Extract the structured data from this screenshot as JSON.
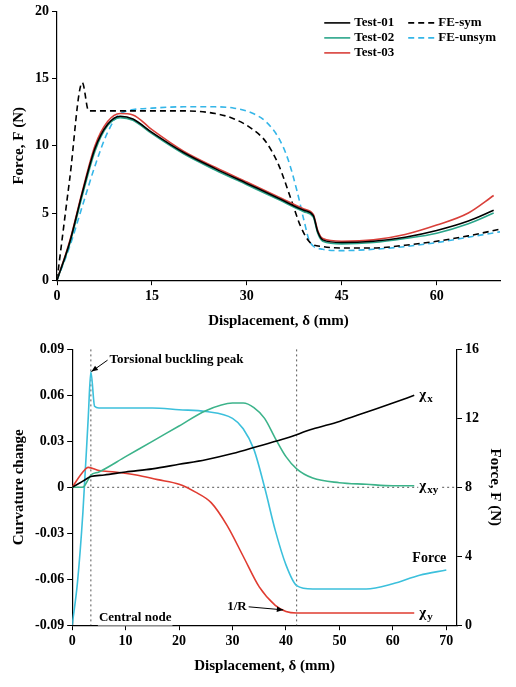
{
  "chart_data": [
    {
      "type": "line",
      "x_label": "Displacement, δ (mm)",
      "y_label": "Force, F (N)",
      "xlim": [
        0,
        70
      ],
      "xticks": [
        0,
        15,
        30,
        45,
        60
      ],
      "ylim": [
        0,
        20
      ],
      "yticks": [
        0,
        5,
        10,
        15,
        20
      ],
      "grid": false,
      "legend": "upper right",
      "series": [
        {
          "name": "Test-01",
          "color": "#000000",
          "line_style": "solid",
          "x": [
            0,
            2,
            4,
            6,
            8,
            10,
            12,
            15,
            20,
            25,
            30,
            35,
            39,
            40.5,
            41.2,
            42,
            45,
            50,
            55,
            60,
            65,
            69
          ],
          "values": [
            0,
            2.8,
            6.5,
            9.8,
            11.6,
            12.2,
            12.0,
            11.0,
            9.5,
            8.3,
            7.2,
            6.1,
            5.2,
            4.8,
            3.6,
            3.0,
            2.8,
            2.9,
            3.2,
            3.7,
            4.4,
            5.2
          ]
        },
        {
          "name": "Test-02",
          "color": "#2aa58a",
          "line_style": "solid",
          "x": [
            0,
            2,
            4,
            6,
            8,
            10,
            12,
            15,
            20,
            25,
            30,
            35,
            39,
            40.5,
            41.2,
            42,
            45,
            50,
            55,
            60,
            65,
            69
          ],
          "values": [
            0,
            2.7,
            6.3,
            9.6,
            11.5,
            12.1,
            11.9,
            10.9,
            9.4,
            8.2,
            7.1,
            6.0,
            5.1,
            4.7,
            3.5,
            2.9,
            2.7,
            2.8,
            3.1,
            3.5,
            4.2,
            5.0
          ]
        },
        {
          "name": "Test-03",
          "color": "#d9403a",
          "line_style": "solid",
          "x": [
            0,
            2,
            4,
            6,
            8,
            10,
            12,
            15,
            20,
            25,
            30,
            35,
            39,
            40.5,
            41.2,
            42,
            45,
            50,
            55,
            60,
            65,
            69
          ],
          "values": [
            0,
            2.9,
            6.6,
            10.0,
            11.8,
            12.4,
            12.3,
            11.2,
            9.6,
            8.4,
            7.3,
            6.2,
            5.3,
            4.9,
            3.7,
            3.1,
            2.9,
            3.0,
            3.4,
            4.1,
            5.0,
            6.3
          ]
        },
        {
          "name": "FE-sym",
          "color": "#000000",
          "line_style": "dashed",
          "x": [
            0,
            2,
            4,
            5,
            8,
            15,
            20,
            25,
            28,
            31,
            33,
            35,
            37,
            38.5,
            40,
            42,
            45,
            50,
            55,
            60,
            65,
            70
          ],
          "values": [
            0,
            7.5,
            14.7,
            12.6,
            12.6,
            12.6,
            12.6,
            12.4,
            12.0,
            11.2,
            10.3,
            8.6,
            6.0,
            4.0,
            2.8,
            2.5,
            2.4,
            2.4,
            2.6,
            2.9,
            3.3,
            3.8
          ]
        },
        {
          "name": "FE-unsym",
          "color": "#35b6e8",
          "line_style": "dashed",
          "x": [
            0,
            2,
            4,
            6,
            8,
            10,
            15,
            20,
            25,
            28,
            31,
            33,
            35,
            36.5,
            38,
            39,
            40,
            42,
            45,
            50,
            55,
            60,
            65,
            70
          ],
          "values": [
            0,
            2.5,
            5.5,
            8.5,
            11.0,
            12.4,
            12.8,
            12.9,
            12.9,
            12.8,
            12.4,
            11.8,
            10.6,
            9.0,
            6.5,
            4.5,
            2.8,
            2.3,
            2.2,
            2.3,
            2.5,
            2.8,
            3.2,
            3.6
          ]
        }
      ]
    },
    {
      "type": "line",
      "x_label": "Displacement, δ (mm)",
      "y_label": "Curvature change",
      "y2_label": "Force, F (N)",
      "xlim": [
        0,
        72
      ],
      "xticks": [
        0,
        10,
        20,
        30,
        40,
        50,
        60,
        70
      ],
      "ylim": [
        -0.09,
        0.09
      ],
      "yticks": [
        -0.09,
        -0.06,
        -0.03,
        0,
        0.03,
        0.06,
        0.09
      ],
      "y2lim": [
        0,
        16
      ],
      "y2ticks": [
        0,
        4,
        8,
        12,
        16
      ],
      "grid": false,
      "reference_lines": {
        "x": [
          3.5,
          42
        ],
        "y": [
          0
        ]
      },
      "annotations": [
        {
          "text": "Torsional buckling peak",
          "x": 7,
          "y": 0.083,
          "arrow_to": [
            3.6,
            0.0755
          ]
        },
        {
          "text": "1/R",
          "x": 29,
          "y": -0.078,
          "arrow_to": [
            39.5,
            -0.08
          ]
        },
        {
          "text": "Central node",
          "x": 5,
          "y": -0.085
        }
      ],
      "series": [
        {
          "name": "χx",
          "color": "#000000",
          "line_style": "solid",
          "x": [
            0,
            2,
            3.5,
            6,
            10,
            15,
            20,
            25,
            30,
            35,
            40,
            45,
            50,
            55,
            60,
            64
          ],
          "values": [
            0,
            0.004,
            0.007,
            0.008,
            0.01,
            0.012,
            0.015,
            0.018,
            0.022,
            0.027,
            0.032,
            0.038,
            0.043,
            0.049,
            0.055,
            0.06
          ]
        },
        {
          "name": "χxy",
          "color": "#3cb38a",
          "line_style": "solid",
          "x": [
            0,
            2,
            3,
            3.5,
            5,
            10,
            15,
            20,
            25,
            30,
            32,
            34,
            36,
            38,
            40,
            42,
            45,
            50,
            55,
            60,
            64
          ],
          "values": [
            0,
            0,
            0.005,
            0.008,
            0.01,
            0.02,
            0.03,
            0.04,
            0.05,
            0.055,
            0.055,
            0.052,
            0.045,
            0.032,
            0.02,
            0.012,
            0.006,
            0.003,
            0.002,
            0.001,
            0.001
          ]
        },
        {
          "name": "χy",
          "color": "#e03c31",
          "line_style": "solid",
          "x": [
            0,
            2,
            3,
            5,
            8,
            12,
            16,
            20,
            23,
            26,
            29,
            32,
            35,
            38,
            40,
            42,
            45,
            50,
            55,
            60,
            64
          ],
          "values": [
            0,
            0.01,
            0.013,
            0.011,
            0.01,
            0.008,
            0.005,
            0.002,
            -0.003,
            -0.01,
            -0.025,
            -0.045,
            -0.065,
            -0.077,
            -0.081,
            -0.082,
            -0.082,
            -0.082,
            -0.082,
            -0.082,
            -0.082
          ]
        },
        {
          "name": "Force",
          "color": "#3cc0dc",
          "line_style": "solid",
          "axis": "y2",
          "x": [
            0,
            1,
            2,
            3,
            3.5,
            4.2,
            5,
            10,
            15,
            20,
            25,
            30,
            32,
            34,
            36,
            38,
            40,
            42,
            45,
            50,
            55,
            60,
            65,
            70
          ],
          "values": [
            0,
            2.5,
            6.5,
            12,
            14.7,
            12.7,
            12.6,
            12.6,
            12.6,
            12.5,
            12.4,
            12.0,
            11.4,
            10.2,
            8.0,
            5.5,
            3.5,
            2.3,
            2.1,
            2.1,
            2.1,
            2.4,
            2.9,
            3.2
          ]
        }
      ]
    }
  ]
}
